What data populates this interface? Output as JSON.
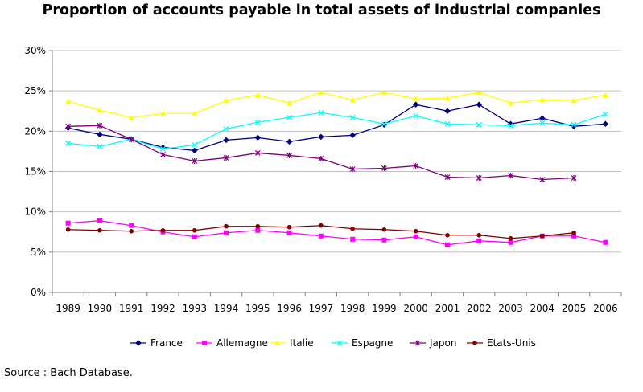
{
  "chart_data": {
    "type": "line",
    "title": "Proportion of accounts payable in total assets of industrial companies",
    "xlabel": "",
    "ylabel": "",
    "ylim": [
      0,
      30
    ],
    "yticks": [
      "0%",
      "5%",
      "10%",
      "15%",
      "20%",
      "25%",
      "30%"
    ],
    "yunit": "%",
    "grid": "horizontal",
    "legend": "bottom",
    "categories": [
      "1989",
      "1990",
      "1991",
      "1992",
      "1993",
      "1994",
      "1995",
      "1996",
      "1997",
      "1998",
      "1999",
      "2000",
      "2001",
      "2002",
      "2003",
      "2004",
      "2005",
      "2006"
    ],
    "series": [
      {
        "name": "France",
        "color": "#000080",
        "marker": "diamond",
        "values": [
          20.4,
          19.6,
          19.0,
          18.0,
          17.6,
          18.9,
          19.2,
          18.7,
          19.3,
          19.5,
          20.8,
          23.3,
          22.5,
          23.3,
          20.9,
          21.6,
          20.6,
          20.9
        ]
      },
      {
        "name": "Allemagne",
        "color": "#FF00FF",
        "marker": "square",
        "values": [
          8.6,
          8.9,
          8.3,
          7.5,
          6.9,
          7.4,
          7.7,
          7.4,
          7.0,
          6.6,
          6.5,
          6.9,
          5.9,
          6.4,
          6.2,
          7.0,
          7.0,
          6.2
        ]
      },
      {
        "name": "Italie",
        "color": "#FFFF00",
        "marker": "triangle",
        "values": [
          23.7,
          22.6,
          21.7,
          22.2,
          22.2,
          23.8,
          24.5,
          23.5,
          24.8,
          23.9,
          24.8,
          24.0,
          24.1,
          24.8,
          23.5,
          23.9,
          23.8,
          24.5
        ]
      },
      {
        "name": "Espagne",
        "color": "#00FFFF",
        "marker": "x",
        "values": [
          18.5,
          18.1,
          19.0,
          17.8,
          18.3,
          20.3,
          21.1,
          21.7,
          22.3,
          21.7,
          20.9,
          21.9,
          20.9,
          20.8,
          20.7,
          21.0,
          20.8,
          22.1
        ]
      },
      {
        "name": "Japon",
        "color": "#800080",
        "marker": "asterisk",
        "values": [
          20.6,
          20.7,
          19.0,
          17.1,
          16.3,
          16.7,
          17.3,
          17.0,
          16.6,
          15.3,
          15.4,
          15.7,
          14.3,
          14.2,
          14.5,
          14.0,
          14.2,
          null
        ]
      },
      {
        "name": "Etats-Unis",
        "color": "#800000",
        "marker": "circle",
        "values": [
          7.8,
          7.7,
          7.6,
          7.7,
          7.7,
          8.2,
          8.2,
          8.1,
          8.3,
          7.9,
          7.8,
          7.6,
          7.1,
          7.1,
          6.7,
          7.0,
          7.4,
          null
        ]
      }
    ]
  },
  "source": "Source : Bach Database."
}
